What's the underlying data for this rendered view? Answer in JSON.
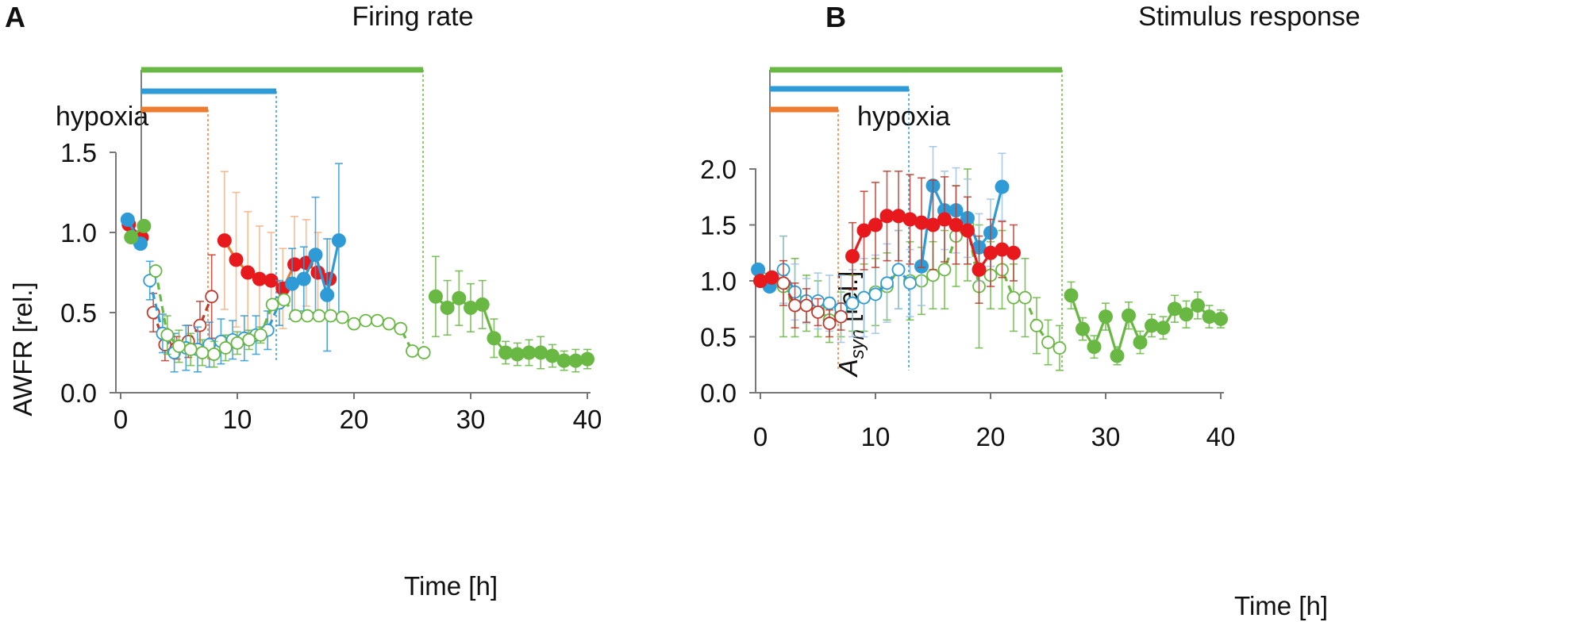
{
  "figure": {
    "panels": [
      {
        "letter": "A",
        "title": "Firing rate",
        "hypoxia_label": "hypoxia",
        "xlabel": "Time [h]",
        "ylabel": "AWFR [rel.]",
        "xticks": [
          "0",
          "10",
          "20",
          "30",
          "40"
        ],
        "yticks": [
          "0.0",
          "0.5",
          "1.0",
          "1.5"
        ]
      },
      {
        "letter": "B",
        "title": "Stimulus response",
        "hypoxia_label": "hypoxia",
        "xlabel": "Time [h]",
        "ylabel_main": "A",
        "ylabel_sub": "syn",
        "ylabel_rest": " [rel.]",
        "xticks": [
          "0",
          "10",
          "20",
          "30",
          "40"
        ],
        "yticks": [
          "0.0",
          "0.5",
          "1.0",
          "1.5",
          "2.0"
        ]
      }
    ]
  },
  "colors": {
    "green": "#6ab844",
    "blue": "#2e9bd6",
    "red": "#e8191c",
    "orange": "#ed7d31",
    "dkred": "#c0392b",
    "lightorange": "#f4b183",
    "lightblue": "#9dc3e6",
    "axis": "#777777"
  },
  "chart_data": [
    {
      "type": "line",
      "title": "Firing rate",
      "xlabel": "Time [h]",
      "ylabel": "AWFR [rel.]",
      "xlim": [
        0,
        40
      ],
      "ylim": [
        0,
        1.5
      ],
      "hypoxia_intervals": [
        {
          "series": "short hypoxia (orange/red)",
          "start": 2,
          "end": 7.8
        },
        {
          "series": "medium hypoxia (blue)",
          "start": 2,
          "end": 13.8
        },
        {
          "series": "long hypoxia (green)",
          "start": 2,
          "end": 26.2
        }
      ],
      "series": [
        {
          "name": "red pre",
          "color": "red",
          "filled": true,
          "dashed": false,
          "points": [
            [
              0.7,
              1.05,
              0
            ],
            [
              1.8,
              0.97,
              0
            ]
          ]
        },
        {
          "name": "red hypoxia",
          "color": "dkred",
          "filled": false,
          "dashed": true,
          "points": [
            [
              2.8,
              0.5,
              0.12
            ],
            [
              3.8,
              0.3,
              0.1
            ],
            [
              4.8,
              0.28,
              0.07
            ],
            [
              5.8,
              0.32,
              0.1
            ],
            [
              6.8,
              0.42,
              0.15
            ],
            [
              7.8,
              0.6,
              0.26
            ]
          ]
        },
        {
          "name": "red post",
          "color": "red",
          "filled": true,
          "dashed": false,
          "line_color": "orange",
          "err_color": "lightorange",
          "points": [
            [
              8.9,
              0.95,
              0.43
            ],
            [
              9.9,
              0.83,
              0.42
            ],
            [
              10.9,
              0.75,
              0.38
            ],
            [
              11.9,
              0.71,
              0.33
            ],
            [
              12.9,
              0.7,
              0.3
            ],
            [
              13.9,
              0.65,
              0.25
            ],
            [
              14.9,
              0.8,
              0.3
            ],
            [
              15.9,
              0.81,
              0.27
            ],
            [
              16.9,
              0.75,
              0.25
            ],
            [
              17.9,
              0.71,
              0.25
            ]
          ]
        },
        {
          "name": "blue pre",
          "color": "blue",
          "filled": true,
          "dashed": false,
          "points": [
            [
              0.6,
              1.08,
              0
            ],
            [
              1.7,
              0.93,
              0
            ]
          ]
        },
        {
          "name": "blue hypoxia",
          "color": "blue",
          "filled": false,
          "dashed": true,
          "err_color": "blue",
          "points": [
            [
              2.5,
              0.7,
              0.12
            ],
            [
              3.6,
              0.37,
              0.12
            ],
            [
              4.6,
              0.25,
              0.12
            ],
            [
              5.6,
              0.28,
              0.14
            ],
            [
              6.6,
              0.27,
              0.14
            ],
            [
              7.6,
              0.3,
              0.14
            ],
            [
              8.6,
              0.32,
              0.14
            ],
            [
              9.6,
              0.33,
              0.12
            ],
            [
              10.6,
              0.34,
              0.14
            ],
            [
              11.6,
              0.36,
              0.12
            ],
            [
              12.6,
              0.39,
              0.12
            ],
            [
              13.6,
              0.56,
              0.14
            ]
          ]
        },
        {
          "name": "blue post",
          "color": "blue",
          "filled": true,
          "dashed": false,
          "err_color": "blue",
          "points": [
            [
              14.7,
              0.68,
              0.22
            ],
            [
              15.7,
              0.71,
              0.2
            ],
            [
              16.7,
              0.86,
              0.36
            ],
            [
              17.7,
              0.61,
              0.35
            ],
            [
              18.7,
              0.95,
              0.48
            ]
          ]
        },
        {
          "name": "green pre",
          "color": "green",
          "filled": true,
          "dashed": false,
          "points": [
            [
              0.9,
              0.97,
              0
            ],
            [
              2.0,
              1.04,
              0
            ]
          ]
        },
        {
          "name": "green hypoxia",
          "color": "green",
          "filled": false,
          "dashed": true,
          "err_color": "green",
          "points": [
            [
              3.0,
              0.76,
              0
            ],
            [
              4.0,
              0.36,
              0.12
            ],
            [
              5.0,
              0.29,
              0.1
            ],
            [
              6.0,
              0.27,
              0.1
            ],
            [
              7.0,
              0.25,
              0.08
            ],
            [
              8.0,
              0.24,
              0.08
            ],
            [
              9.0,
              0.28,
              0.08
            ],
            [
              10.0,
              0.31,
              0.07
            ],
            [
              11.0,
              0.33,
              0.06
            ],
            [
              12.0,
              0.36,
              0.05
            ],
            [
              13.0,
              0.55,
              0
            ],
            [
              14.0,
              0.58,
              0
            ],
            [
              15.0,
              0.48,
              0
            ],
            [
              16.0,
              0.48,
              0
            ],
            [
              17.0,
              0.48,
              0
            ],
            [
              18.0,
              0.48,
              0
            ],
            [
              19.0,
              0.47,
              0
            ],
            [
              20.0,
              0.43,
              0
            ],
            [
              21.0,
              0.45,
              0
            ],
            [
              22.0,
              0.45,
              0
            ],
            [
              23.0,
              0.43,
              0
            ],
            [
              24.0,
              0.4,
              0
            ],
            [
              25.0,
              0.26,
              0
            ],
            [
              26.0,
              0.25,
              0
            ]
          ]
        },
        {
          "name": "green post",
          "color": "green",
          "filled": true,
          "dashed": false,
          "err_color": "green",
          "points": [
            [
              27.0,
              0.6,
              0.25
            ],
            [
              28.0,
              0.53,
              0.17
            ],
            [
              29.0,
              0.59,
              0.17
            ],
            [
              30.0,
              0.53,
              0.15
            ],
            [
              31.0,
              0.55,
              0.15
            ],
            [
              32.0,
              0.34,
              0.12
            ],
            [
              33.0,
              0.25,
              0.07
            ],
            [
              34.0,
              0.24,
              0.07
            ],
            [
              35.0,
              0.25,
              0.08
            ],
            [
              36.0,
              0.25,
              0.1
            ],
            [
              37.0,
              0.23,
              0.07
            ],
            [
              38.0,
              0.2,
              0.06
            ],
            [
              39.0,
              0.2,
              0.07
            ],
            [
              40.0,
              0.21,
              0.06
            ]
          ]
        }
      ]
    },
    {
      "type": "line",
      "title": "Stimulus response",
      "xlabel": "Time [h]",
      "ylabel": "Asyn [rel.]",
      "xlim": [
        0,
        40
      ],
      "ylim": [
        0,
        2.0
      ],
      "hypoxia_intervals": [
        {
          "series": "short hypoxia (orange/red)",
          "start": 1,
          "end": 7
        },
        {
          "series": "medium hypoxia (blue)",
          "start": 1,
          "end": 13
        },
        {
          "series": "long hypoxia (green)",
          "start": 1,
          "end": 26
        }
      ],
      "series": [
        {
          "name": "green hypoxia",
          "color": "green",
          "filled": false,
          "dashed": true,
          "err_color": "green",
          "points": [
            [
              0.2,
              1.02,
              0
            ],
            [
              1.0,
              1.0,
              0
            ],
            [
              2.0,
              0.95,
              0.45
            ],
            [
              3.0,
              0.85,
              0.35
            ],
            [
              4.0,
              0.8,
              0.25
            ],
            [
              5.0,
              0.75,
              0.25
            ],
            [
              6.0,
              0.65,
              0.2
            ],
            [
              7.0,
              0.7,
              0.2
            ],
            [
              8.0,
              0.8,
              0.25
            ],
            [
              9.0,
              0.85,
              0.3
            ],
            [
              10.0,
              0.9,
              0.3
            ],
            [
              11.0,
              0.95,
              0.3
            ],
            [
              12.0,
              1.1,
              0.35
            ],
            [
              13.0,
              1.0,
              0.35
            ],
            [
              14.0,
              1.0,
              0.3
            ],
            [
              15.0,
              1.05,
              0.3
            ],
            [
              16.0,
              1.1,
              0.35
            ],
            [
              17.0,
              1.4,
              0.45
            ],
            [
              18.0,
              1.5,
              0.5
            ],
            [
              19.0,
              0.95,
              0.55
            ],
            [
              20.0,
              1.05,
              0.3
            ],
            [
              21.0,
              1.1,
              0.35
            ],
            [
              22.0,
              0.85,
              0.3
            ],
            [
              23.0,
              0.85,
              0.35
            ],
            [
              24.0,
              0.6,
              0.25
            ],
            [
              25.0,
              0.45,
              0.2
            ],
            [
              26.0,
              0.4,
              0.2
            ]
          ]
        },
        {
          "name": "green post",
          "color": "green",
          "filled": true,
          "dashed": false,
          "err_color": "green",
          "points": [
            [
              27.0,
              0.87,
              0.12
            ],
            [
              28.0,
              0.57,
              0.1
            ],
            [
              29.0,
              0.41,
              0.1
            ],
            [
              30.0,
              0.68,
              0.12
            ],
            [
              31.0,
              0.33,
              0.08
            ],
            [
              32.0,
              0.69,
              0.12
            ],
            [
              33.0,
              0.45,
              0.1
            ],
            [
              34.0,
              0.6,
              0.1
            ],
            [
              35.0,
              0.58,
              0.1
            ],
            [
              36.0,
              0.75,
              0.12
            ],
            [
              37.0,
              0.7,
              0.12
            ],
            [
              38.0,
              0.78,
              0.12
            ],
            [
              39.0,
              0.68,
              0.1
            ],
            [
              40.0,
              0.66,
              0.08
            ]
          ]
        },
        {
          "name": "blue pre",
          "color": "blue",
          "filled": true,
          "dashed": false,
          "points": [
            [
              -0.2,
              1.1,
              0
            ],
            [
              0.8,
              0.95,
              0
            ]
          ]
        },
        {
          "name": "blue hypoxia",
          "color": "blue",
          "filled": false,
          "dashed": true,
          "err_color": "lightblue",
          "points": [
            [
              2.0,
              1.1,
              0.3
            ],
            [
              3.0,
              0.9,
              0.25
            ],
            [
              4.0,
              0.82,
              0.2
            ],
            [
              5.0,
              0.82,
              0.25
            ],
            [
              6.0,
              0.8,
              0.25
            ],
            [
              7.0,
              0.75,
              0.3
            ],
            [
              8.0,
              0.8,
              0.3
            ],
            [
              9.0,
              0.85,
              0.35
            ],
            [
              10.0,
              0.88,
              0.35
            ],
            [
              11.0,
              0.98,
              0.35
            ],
            [
              12.0,
              1.1,
              0.35
            ],
            [
              13.0,
              0.98,
              0.3
            ]
          ]
        },
        {
          "name": "blue post",
          "color": "blue",
          "filled": true,
          "dashed": false,
          "err_color": "lightblue",
          "points": [
            [
              14.0,
              1.13,
              0.35
            ],
            [
              15.0,
              1.85,
              0.35
            ],
            [
              16.0,
              1.63,
              0.35
            ],
            [
              17.0,
              1.63,
              0.38
            ],
            [
              18.0,
              1.56,
              0.35
            ],
            [
              19.0,
              1.3,
              0.3
            ],
            [
              20.0,
              1.43,
              0.3
            ],
            [
              21.0,
              1.84,
              0.3
            ]
          ]
        },
        {
          "name": "red pre",
          "color": "red",
          "filled": true,
          "dashed": false,
          "points": [
            [
              0.0,
              1.0,
              0
            ],
            [
              1.0,
              1.03,
              0
            ]
          ]
        },
        {
          "name": "red hypoxia",
          "color": "dkred",
          "filled": false,
          "dashed": true,
          "err_color": "dkred",
          "points": [
            [
              2.0,
              0.98,
              0.2
            ],
            [
              3.0,
              0.78,
              0.2
            ],
            [
              4.0,
              0.78,
              0.15
            ],
            [
              5.0,
              0.72,
              0.12
            ],
            [
              6.0,
              0.62,
              0.12
            ],
            [
              7.0,
              0.68,
              0.12
            ]
          ]
        },
        {
          "name": "red post",
          "color": "red",
          "filled": true,
          "dashed": false,
          "err_color": "dkred",
          "points": [
            [
              8.0,
              1.22,
              0.3
            ],
            [
              9.0,
              1.45,
              0.35
            ],
            [
              10.0,
              1.5,
              0.38
            ],
            [
              11.0,
              1.58,
              0.4
            ],
            [
              12.0,
              1.58,
              0.4
            ],
            [
              13.0,
              1.55,
              0.4
            ],
            [
              14.0,
              1.52,
              0.4
            ],
            [
              15.0,
              1.5,
              0.4
            ],
            [
              16.0,
              1.55,
              0.38
            ],
            [
              17.0,
              1.5,
              0.35
            ],
            [
              18.0,
              1.45,
              0.3
            ],
            [
              19.0,
              1.1,
              0.3
            ],
            [
              20.0,
              1.25,
              0.3
            ],
            [
              21.0,
              1.28,
              0.25
            ],
            [
              22.0,
              1.25,
              0.25
            ]
          ]
        }
      ]
    }
  ]
}
